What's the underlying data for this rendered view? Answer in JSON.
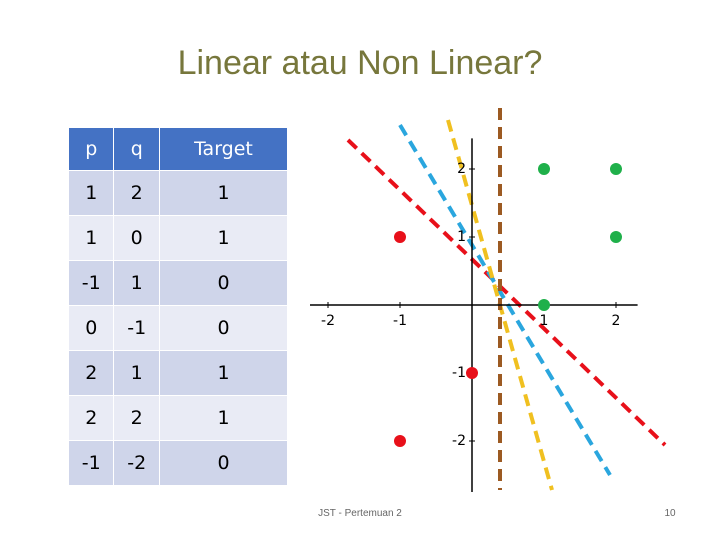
{
  "title": "Linear atau Non Linear?",
  "table": {
    "header": [
      "p",
      "q",
      "Target"
    ],
    "rows": [
      [
        1,
        2,
        1
      ],
      [
        1,
        0,
        1
      ],
      [
        -1,
        1,
        0
      ],
      [
        0,
        -1,
        0
      ],
      [
        2,
        1,
        1
      ],
      [
        2,
        2,
        1
      ],
      [
        -1,
        -2,
        0
      ]
    ]
  },
  "chart_data": {
    "type": "scatter",
    "series": [
      {
        "color": "#e8101a",
        "x": [
          -1,
          0,
          -1
        ],
        "values": [
          1,
          -1,
          -2
        ]
      },
      {
        "color": "#1fb04a",
        "x": [
          1,
          2,
          2,
          1
        ],
        "values": [
          2,
          2,
          1,
          0
        ]
      }
    ],
    "xlim": [
      -2.25,
      2.3
    ],
    "ylim": [
      -2.75,
      2.45
    ],
    "xticks": [
      -2,
      -1,
      1,
      2
    ],
    "yticks": [
      2,
      1,
      -1,
      -2
    ]
  },
  "footer": "JST - Pertemuan 2",
  "page_number": "10"
}
